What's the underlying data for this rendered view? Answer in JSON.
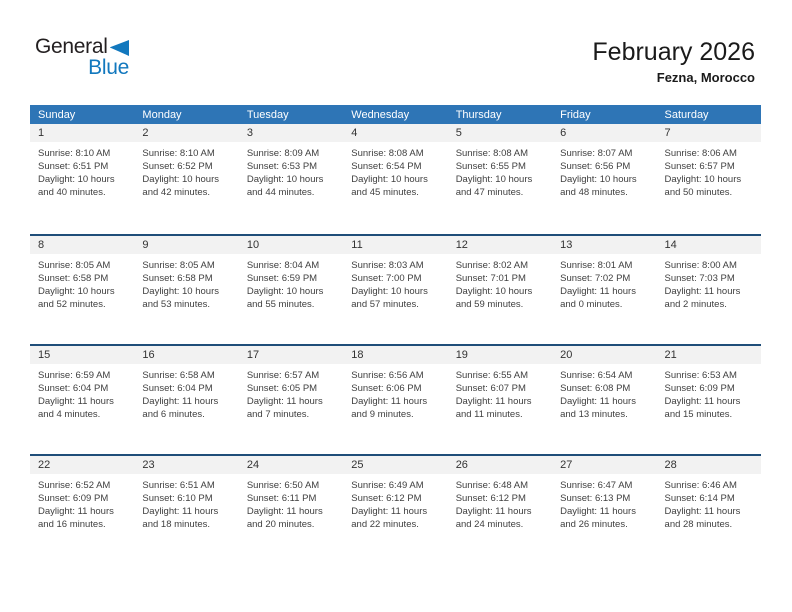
{
  "logo": {
    "part1": "General",
    "part2": "Blue"
  },
  "header": {
    "title": "February 2026",
    "location": "Fezna, Morocco"
  },
  "colors": {
    "header_bg": "#2E75B6",
    "separator": "#1F4E79",
    "day_band": "#F2F2F2",
    "accent_blue": "#1278BE"
  },
  "calendar": {
    "weekdays": [
      "Sunday",
      "Monday",
      "Tuesday",
      "Wednesday",
      "Thursday",
      "Friday",
      "Saturday"
    ],
    "labels": {
      "sunrise": "Sunrise:",
      "sunset": "Sunset:",
      "daylight": "Daylight:"
    },
    "weeks": [
      [
        {
          "day": "1",
          "sunrise": "8:10 AM",
          "sunset": "6:51 PM",
          "daylight": "10 hours and 40 minutes."
        },
        {
          "day": "2",
          "sunrise": "8:10 AM",
          "sunset": "6:52 PM",
          "daylight": "10 hours and 42 minutes."
        },
        {
          "day": "3",
          "sunrise": "8:09 AM",
          "sunset": "6:53 PM",
          "daylight": "10 hours and 44 minutes."
        },
        {
          "day": "4",
          "sunrise": "8:08 AM",
          "sunset": "6:54 PM",
          "daylight": "10 hours and 45 minutes."
        },
        {
          "day": "5",
          "sunrise": "8:08 AM",
          "sunset": "6:55 PM",
          "daylight": "10 hours and 47 minutes."
        },
        {
          "day": "6",
          "sunrise": "8:07 AM",
          "sunset": "6:56 PM",
          "daylight": "10 hours and 48 minutes."
        },
        {
          "day": "7",
          "sunrise": "8:06 AM",
          "sunset": "6:57 PM",
          "daylight": "10 hours and 50 minutes."
        }
      ],
      [
        {
          "day": "8",
          "sunrise": "8:05 AM",
          "sunset": "6:58 PM",
          "daylight": "10 hours and 52 minutes."
        },
        {
          "day": "9",
          "sunrise": "8:05 AM",
          "sunset": "6:58 PM",
          "daylight": "10 hours and 53 minutes."
        },
        {
          "day": "10",
          "sunrise": "8:04 AM",
          "sunset": "6:59 PM",
          "daylight": "10 hours and 55 minutes."
        },
        {
          "day": "11",
          "sunrise": "8:03 AM",
          "sunset": "7:00 PM",
          "daylight": "10 hours and 57 minutes."
        },
        {
          "day": "12",
          "sunrise": "8:02 AM",
          "sunset": "7:01 PM",
          "daylight": "10 hours and 59 minutes."
        },
        {
          "day": "13",
          "sunrise": "8:01 AM",
          "sunset": "7:02 PM",
          "daylight": "11 hours and 0 minutes."
        },
        {
          "day": "14",
          "sunrise": "8:00 AM",
          "sunset": "7:03 PM",
          "daylight": "11 hours and 2 minutes."
        }
      ],
      [
        {
          "day": "15",
          "sunrise": "6:59 AM",
          "sunset": "6:04 PM",
          "daylight": "11 hours and 4 minutes."
        },
        {
          "day": "16",
          "sunrise": "6:58 AM",
          "sunset": "6:04 PM",
          "daylight": "11 hours and 6 minutes."
        },
        {
          "day": "17",
          "sunrise": "6:57 AM",
          "sunset": "6:05 PM",
          "daylight": "11 hours and 7 minutes."
        },
        {
          "day": "18",
          "sunrise": "6:56 AM",
          "sunset": "6:06 PM",
          "daylight": "11 hours and 9 minutes."
        },
        {
          "day": "19",
          "sunrise": "6:55 AM",
          "sunset": "6:07 PM",
          "daylight": "11 hours and 11 minutes."
        },
        {
          "day": "20",
          "sunrise": "6:54 AM",
          "sunset": "6:08 PM",
          "daylight": "11 hours and 13 minutes."
        },
        {
          "day": "21",
          "sunrise": "6:53 AM",
          "sunset": "6:09 PM",
          "daylight": "11 hours and 15 minutes."
        }
      ],
      [
        {
          "day": "22",
          "sunrise": "6:52 AM",
          "sunset": "6:09 PM",
          "daylight": "11 hours and 16 minutes."
        },
        {
          "day": "23",
          "sunrise": "6:51 AM",
          "sunset": "6:10 PM",
          "daylight": "11 hours and 18 minutes."
        },
        {
          "day": "24",
          "sunrise": "6:50 AM",
          "sunset": "6:11 PM",
          "daylight": "11 hours and 20 minutes."
        },
        {
          "day": "25",
          "sunrise": "6:49 AM",
          "sunset": "6:12 PM",
          "daylight": "11 hours and 22 minutes."
        },
        {
          "day": "26",
          "sunrise": "6:48 AM",
          "sunset": "6:12 PM",
          "daylight": "11 hours and 24 minutes."
        },
        {
          "day": "27",
          "sunrise": "6:47 AM",
          "sunset": "6:13 PM",
          "daylight": "11 hours and 26 minutes."
        },
        {
          "day": "28",
          "sunrise": "6:46 AM",
          "sunset": "6:14 PM",
          "daylight": "11 hours and 28 minutes."
        }
      ]
    ]
  }
}
